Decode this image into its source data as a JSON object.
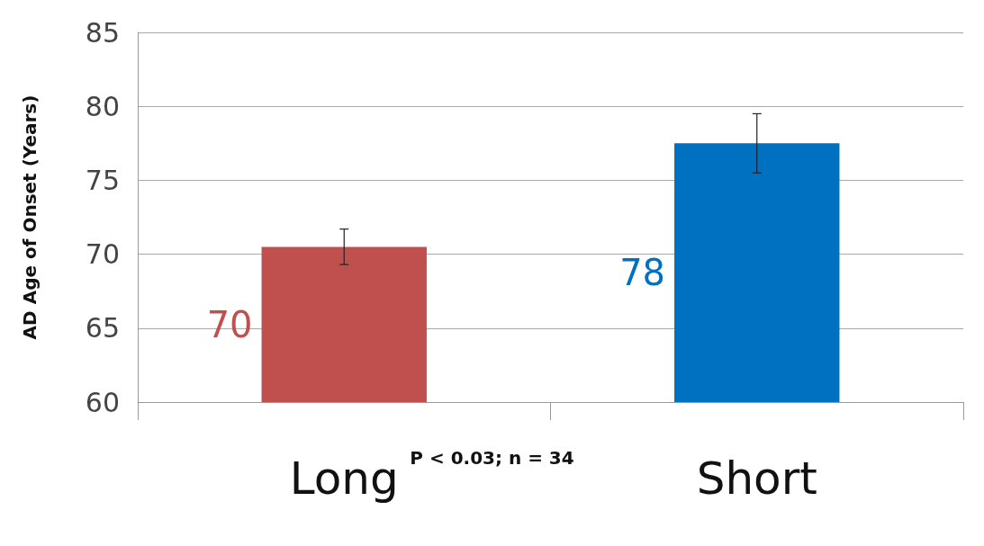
{
  "chart_data": {
    "type": "bar",
    "ylabel": "AD Age of Onset (Years)",
    "categories": [
      "Long",
      "Short"
    ],
    "values": [
      70.5,
      77.5
    ],
    "colors": [
      "#c0504d",
      "#0070c0"
    ],
    "errors": [
      [
        69.3,
        71.7
      ],
      [
        75.5,
        79.5
      ]
    ],
    "value_labels": [
      "70",
      "78"
    ],
    "ylim": [
      60,
      85
    ],
    "yticks": [
      60,
      65,
      70,
      75,
      80,
      85
    ],
    "grid": "y",
    "annotations": [
      "P < 0.03; n = 34"
    ]
  }
}
